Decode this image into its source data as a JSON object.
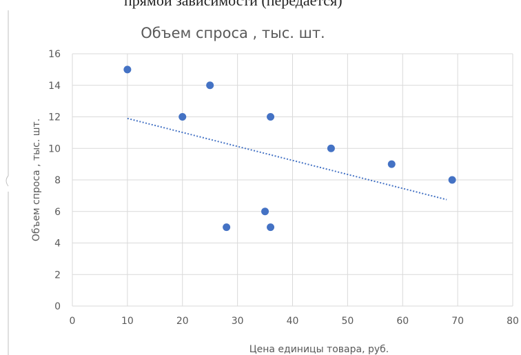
{
  "top_text": "прямой зависимости (передается)",
  "chart_data": {
    "type": "scatter",
    "title": "Объем спроса , тыс. шт.",
    "xlabel": "Цена  единицы товара, руб.",
    "ylabel": "Объем спроса , тыс. шт.",
    "xlim": [
      0,
      80
    ],
    "ylim": [
      0,
      16
    ],
    "xticks": [
      "0",
      "10",
      "20",
      "30",
      "40",
      "50",
      "60",
      "70",
      "80"
    ],
    "yticks": [
      "0",
      "2",
      "4",
      "6",
      "8",
      "10",
      "12",
      "14",
      "16"
    ],
    "grid": true,
    "series": [
      {
        "color": "#4472c4",
        "points": [
          {
            "x": 10,
            "y": 15
          },
          {
            "x": 20,
            "y": 12
          },
          {
            "x": 25,
            "y": 14
          },
          {
            "x": 28,
            "y": 5
          },
          {
            "x": 35,
            "y": 6
          },
          {
            "x": 36,
            "y": 12
          },
          {
            "x": 36,
            "y": 5
          },
          {
            "x": 47,
            "y": 10
          },
          {
            "x": 58,
            "y": 9
          },
          {
            "x": 69,
            "y": 8
          }
        ]
      }
    ],
    "trendline": {
      "type": "linear",
      "style": "dotted",
      "color": "#4472c4",
      "start": {
        "x": 10,
        "y": 11.9
      },
      "end": {
        "x": 68,
        "y": 6.75
      }
    }
  }
}
